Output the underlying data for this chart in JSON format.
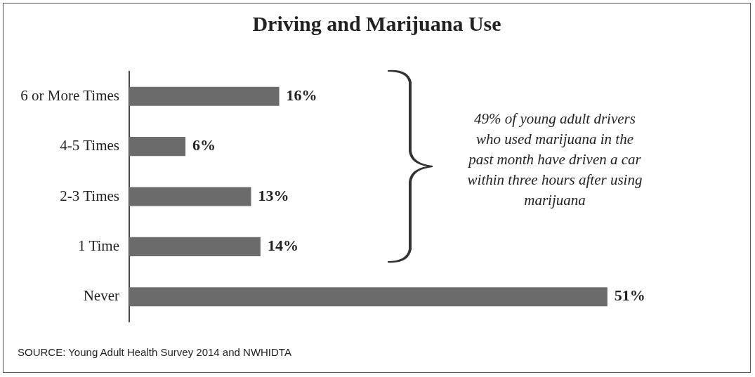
{
  "chart_data": {
    "type": "bar",
    "orientation": "horizontal",
    "title": "Driving and Marijuana Use",
    "categories": [
      "6 or More Times",
      "4-5 Times",
      "2-3 Times",
      "1 Time",
      "Never"
    ],
    "values": [
      16,
      6,
      13,
      14,
      51
    ],
    "value_labels": [
      "16%",
      "6%",
      "13%",
      "14%",
      "51%"
    ],
    "color": "#6b6b6b",
    "legend": false,
    "tick_labels": "y",
    "annotations": [
      "49% of young adult drivers who used marijuana in the past month have driven a car within three hours after using marijuana",
      "SOURCE: Young Adult Health Survey 2014 and NWHIDTA"
    ]
  }
}
